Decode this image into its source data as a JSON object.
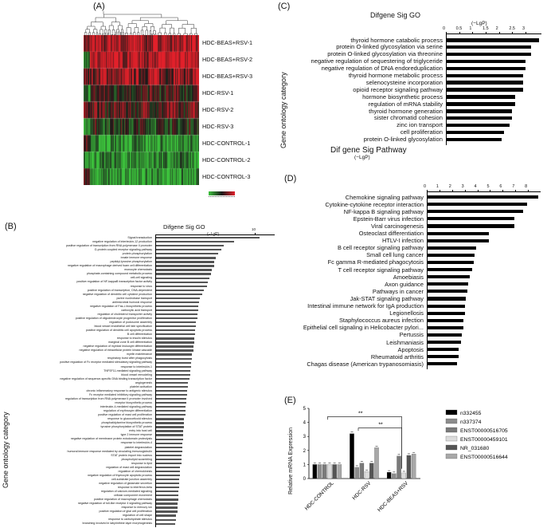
{
  "panels": {
    "a": "(A)",
    "b": "(B)",
    "c": "(C)",
    "d": "(D)",
    "e": "(E)"
  },
  "heatmap": {
    "rows": [
      "HDC-BEAS+RSV-1",
      "HDC-BEAS+RSV-2",
      "HDC-BEAS+RSV-3",
      "HDC-RSV-1",
      "HDC-RSV-2",
      "HDC-RSV-3",
      "HDC-CONTROL-1",
      "HDC-CONTROL-2",
      "HDC-CONTROL-3"
    ],
    "colors": {
      "high": "#e2202a",
      "mid": "#1a1a1a",
      "low": "#3cc23c"
    }
  },
  "chart_data": [
    {
      "panel": "C",
      "type": "bar",
      "title": "Difgene Sig GO",
      "axis_unit": "(−LgP)",
      "ylabel": "Gene ontology category",
      "xlim": [
        0,
        3.6
      ],
      "xticks": [
        "0",
        "0.5",
        "1",
        "1.5",
        "2",
        "2.5",
        "3"
      ],
      "categories": [
        "thyroid hormone catabolic process",
        "protein O-linked glycosylation via serine",
        "protein O-linked glycosylation via threonine",
        "negative regulation of sequestering of triglyceride",
        "negative regulation of DNA endoreduplication",
        "thyroid hormone metabolic process",
        "selenocysteine incorporation",
        "opioid receptor signaling pathway",
        "hormone biosynthetic process",
        "regulation of mRNA stability",
        "thyroid hormone generation",
        "sister chromatid cohesion",
        "zinc ion transport",
        "cell proliferation",
        "protein O-linked glycosylation"
      ],
      "values": [
        3.5,
        3.2,
        3.2,
        3.0,
        3.0,
        2.9,
        2.9,
        2.9,
        2.6,
        2.6,
        2.5,
        2.5,
        2.4,
        2.2,
        2.1
      ]
    },
    {
      "panel": "D",
      "type": "bar",
      "title": "Dif gene Sig Pathway",
      "axis_unit": "(−LgP)",
      "xlim": [
        0,
        9
      ],
      "xticks": [
        "0",
        "1",
        "2",
        "3",
        "4",
        "5",
        "6",
        "7",
        "8"
      ],
      "categories": [
        "Chemokine signaling pathway",
        "Cytokine-cytokine receptor interaction",
        "NF-kappa B signaling pathway",
        "Epstein-Barr virus infection",
        "Viral carcinogenesis",
        "Osteoclast differentiation",
        "HTLV-I infection",
        "B cell receptor signaling pathway",
        "Small cell lung cancer",
        "Fc gamma R-mediated phagocytosis",
        "T cell receptor signaling pathway",
        "Amoebiasis",
        "Axon guidance",
        "Pathways in cancer",
        "Jak-STAT signaling pathway",
        "Intestinal immune network for IgA production",
        "Legionellosis",
        "Staphylococcus aureus infection",
        "Epithelial cell signaling in Helicobacter pylori...",
        "Pertussis",
        "Leishmaniasis",
        "Apoptosis",
        "Rheumatoid arthritis",
        "Chagas disease (American trypanosomiasis)"
      ],
      "values": [
        8.8,
        7.9,
        7.6,
        6.9,
        6.9,
        4.9,
        4.9,
        3.9,
        3.8,
        3.7,
        3.6,
        3.4,
        3.3,
        3.2,
        3.1,
        3.0,
        3.0,
        2.9,
        2.9,
        2.8,
        2.7,
        2.5,
        2.5,
        2.4
      ]
    },
    {
      "panel": "B",
      "type": "bar",
      "title": "Difgene Sig GO",
      "axis_unit": "(−LgP)",
      "ylabel": "Gene ontology category",
      "xlim": [
        0,
        12
      ],
      "xticks": [
        "10"
      ],
      "categories": [
        "Signal transduction",
        "negative regulation of interleukin-12 production",
        "positive regulation of transcription from RNA polymerase II promoter",
        "G-protein coupled receptor signaling pathway",
        "protein phosphorylation",
        "innate immune response",
        "peptidyl-tyrosine phosphorylation",
        "negative regulation of macrophage derived foam cell differentiation",
        "monocyte chemotaxis",
        "phosphate-containing compound metabolic process",
        "cell-cell signaling",
        "positive regulation of NF-kappaB transcription factor activity",
        "response to virus",
        "positive regulation of transcription, DNA-dependent",
        "negative regulation of dendritic cell cytokine production",
        "purine nucleobase transport",
        "antimicrobial humoral response",
        "negative regulation of Fas-L biosynthetic process",
        "carboxylic acid transport",
        "regulation of cholesterol transporter activity",
        "positive regulation of oligodendrocyte progenitor proliferation",
        "regulation of podosome assembly",
        "blood vessel endothelial cell fate specification",
        "positive regulation of dendritic cell apoptotic process",
        "B cell differentiation",
        "response to insulin stimulus",
        "marginal zone B cell differentiation",
        "negative regulation of myeloid leukocyte differentiation",
        "negative regulation of intracellular protein kinase cascade",
        "myelin maintenance",
        "respiratory burst after phagocytosis",
        "positive regulation of Fc receptor mediated stimulatory signaling pathway",
        "response to interleukin-1",
        "TNFSF11-mediated signaling pathway",
        "blood vessel remodeling",
        "negative regulation of sequence-specific DNA binding transcription factor",
        "angiogenesis",
        "platelet activation",
        "chronic inflammatory response to antigenic stimulus",
        "Fc receptor mediated inhibitory signaling pathway",
        "regulation of transcription from RNA polymerase II promoter involved",
        "receptor biosynthetic process",
        "interleukin-4-mediated signaling pathway",
        "regulation of erythrocyte differentiation",
        "positive regulation of mast cell proliferation",
        "response to glucocorticoid stimulus",
        "phosphatidylserine biosynthetic process",
        "tyrosine phosphorylation of STAT protein",
        "entry into host cell",
        "type 2 immune response",
        "negative regulation of membrane protein ectodomain proteolysis",
        "response to interleukin-4",
        "platelet degranulation",
        "humoral immune response mediated by circulating immunoglobulin",
        "STAT protein import into nucleus",
        "phospholipid scrambling",
        "response to lipid",
        "regulation of mast cell degranulation",
        "regulation of chemokinesis",
        "negative regulation of thymocyte apoptotic process",
        "cell-substrate junction assembly",
        "negative regulation of glutamate secretion",
        "response to interferon-beta",
        "regulation of calcium-mediated signaling",
        "cellular component movement",
        "positive regulation of macrophage chemotaxis",
        "negative regulation of toll-like receptor 4 signaling pathway",
        "response to mercury ion",
        "positive regulation of glial cell proliferation",
        "regulation of cell shape",
        "response to carbohydrate stimulus",
        "branching involved in labyrinthine layer morphogenesis"
      ],
      "values": [
        10.5,
        7.9,
        6.9,
        6.6,
        6.3,
        6.1,
        5.9,
        5.9,
        5.7,
        5.6,
        5.4,
        5.3,
        5.2,
        4.9,
        4.7,
        4.5,
        4.4,
        4.3,
        4.3,
        4.2,
        4.2,
        4.1,
        4.1,
        4.0,
        4.0,
        3.9,
        3.9,
        3.8,
        3.8,
        3.7,
        3.7,
        3.6,
        3.6,
        3.5,
        3.5,
        3.4,
        3.3,
        3.3,
        3.2,
        3.2,
        3.1,
        3.1,
        3.0,
        3.0,
        3.0,
        2.9,
        2.9,
        2.9,
        2.8,
        2.8,
        2.8,
        2.7,
        2.7,
        2.7,
        2.6,
        2.6,
        2.6,
        2.5,
        2.5,
        2.5,
        2.4,
        2.4,
        2.4,
        2.3,
        2.3,
        2.3,
        2.2,
        2.2,
        2.2,
        2.1,
        2.1,
        2.0
      ]
    },
    {
      "panel": "E",
      "type": "bar",
      "ylabel": "Relative mRNA Expression",
      "ylim": [
        0,
        5
      ],
      "yticks": [
        "0",
        "1",
        "2",
        "3",
        "4",
        "5"
      ],
      "categories": [
        "HDC-CONTROL",
        "HDC-RSV",
        "HDC-BEAS+RSV"
      ],
      "series": [
        {
          "name": "n332455",
          "color": "#000000",
          "values": [
            1.0,
            3.2,
            0.45
          ]
        },
        {
          "name": "n337374",
          "color": "#8c8c8c",
          "values": [
            1.0,
            0.8,
            0.35
          ]
        },
        {
          "name": "ENST00000516705",
          "color": "#7a7a7a",
          "values": [
            1.0,
            1.1,
            1.6
          ]
        },
        {
          "name": "ENST00000459101",
          "color": "#dcdcdc",
          "values": [
            1.0,
            0.5,
            0.4
          ]
        },
        {
          "name": "NR_031680",
          "color": "#555555",
          "values": [
            1.0,
            1.1,
            1.65
          ]
        },
        {
          "name": "ENST00000516644",
          "color": "#a8a8a8",
          "values": [
            1.0,
            2.2,
            1.75
          ]
        }
      ],
      "legend": "right",
      "annotations": [
        "**",
        "**"
      ]
    }
  ]
}
